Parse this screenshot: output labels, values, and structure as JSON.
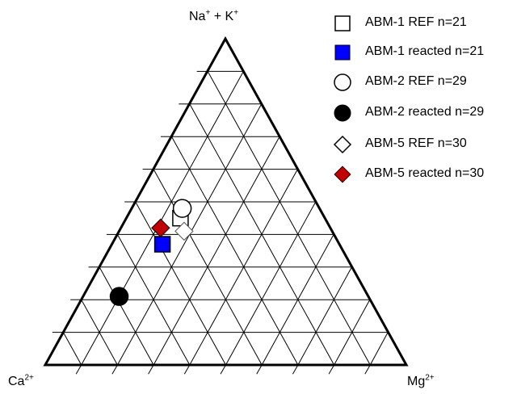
{
  "chart_data": {
    "type": "scatter",
    "subtype": "ternary",
    "title": "",
    "apex_labels": {
      "top": {
        "base": "Na",
        "sup1": "+",
        "mid": " + K",
        "sup2": "+"
      },
      "left": {
        "base": "Ca",
        "sup": "2+"
      },
      "right": {
        "base": "Mg",
        "sup": "2+"
      }
    },
    "grid": true,
    "grid_step_percent": 10,
    "legend_position": "top-right",
    "series": [
      {
        "name": "ABM-1 REF n=21",
        "marker": "square",
        "fill": "#ffffff",
        "stroke": "#000000",
        "values": {
          "na_k": 45,
          "ca": 40,
          "mg": 15
        }
      },
      {
        "name": "ABM-1 reacted n=21",
        "marker": "square",
        "fill": "#0000ff",
        "stroke": "#000000",
        "values": {
          "na_k": 37,
          "ca": 49,
          "mg": 14
        }
      },
      {
        "name": "ABM-2 REF n=29",
        "marker": "circle",
        "fill": "#ffffff",
        "stroke": "#000000",
        "values": {
          "na_k": 48,
          "ca": 38,
          "mg": 14
        }
      },
      {
        "name": "ABM-2 reacted n=29",
        "marker": "circle",
        "fill": "#000000",
        "stroke": "#000000",
        "values": {
          "na_k": 21,
          "ca": 69,
          "mg": 10
        }
      },
      {
        "name": "ABM-5 REF n=30",
        "marker": "diamond",
        "fill": "#ffffff",
        "stroke": "#000000",
        "values": {
          "na_k": 41,
          "ca": 41,
          "mg": 18
        }
      },
      {
        "name": "ABM-5 reacted n=30",
        "marker": "diamond",
        "fill": "#c00000",
        "stroke": "#000000",
        "values": {
          "na_k": 42,
          "ca": 47,
          "mg": 11
        }
      }
    ]
  }
}
